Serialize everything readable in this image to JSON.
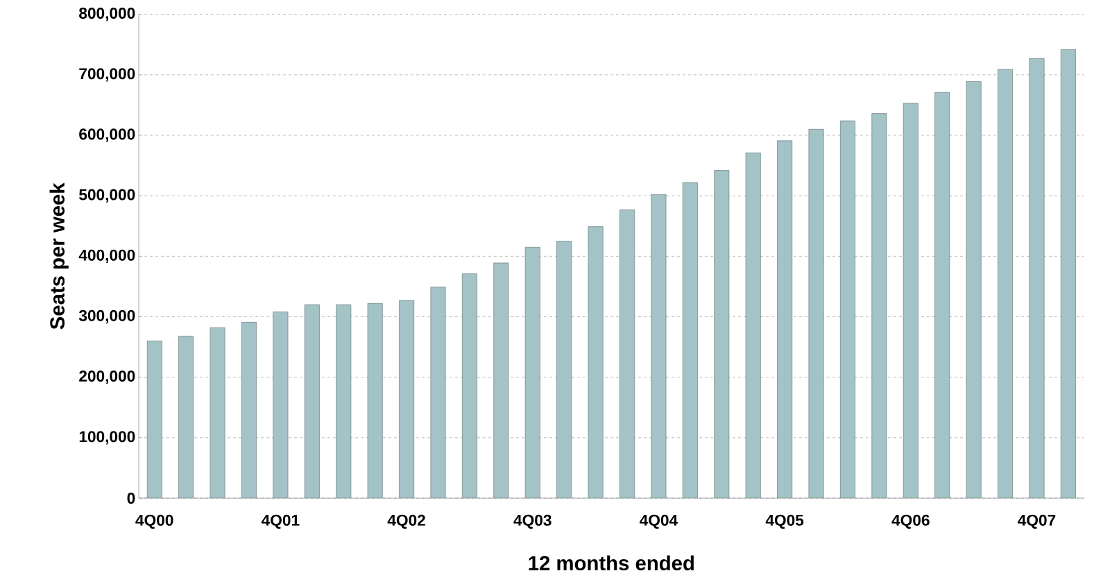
{
  "chart_data": {
    "type": "bar",
    "xlabel": "12 months ended",
    "ylabel": "Seats per week",
    "categories": [
      "4Q00",
      null,
      null,
      null,
      "4Q01",
      null,
      null,
      null,
      "4Q02",
      null,
      null,
      null,
      "4Q03",
      null,
      null,
      null,
      "4Q04",
      null,
      null,
      null,
      "4Q05",
      null,
      null,
      null,
      "4Q06",
      null,
      null,
      null,
      "4Q07",
      null
    ],
    "values": [
      260000,
      268000,
      282000,
      291000,
      308000,
      320000,
      320000,
      322000,
      327000,
      349000,
      371000,
      389000,
      415000,
      425000,
      449000,
      477000,
      502000,
      522000,
      542000,
      571000,
      591000,
      610000,
      624000,
      636000,
      653000,
      671000,
      689000,
      709000,
      727000,
      742000
    ],
    "color": "#a3c3c6",
    "ylim": [
      0,
      800000
    ],
    "yticks": [
      {
        "value": 0,
        "label": "0"
      },
      {
        "value": 100000,
        "label": "100,000"
      },
      {
        "value": 200000,
        "label": "200,000"
      },
      {
        "value": 300000,
        "label": "300,000"
      },
      {
        "value": 400000,
        "label": "400,000"
      },
      {
        "value": 500000,
        "label": "500,000"
      },
      {
        "value": 600000,
        "label": "600,000"
      },
      {
        "value": 700000,
        "label": "700,000"
      },
      {
        "value": 800000,
        "label": "800,000"
      }
    ],
    "grid": "y"
  }
}
